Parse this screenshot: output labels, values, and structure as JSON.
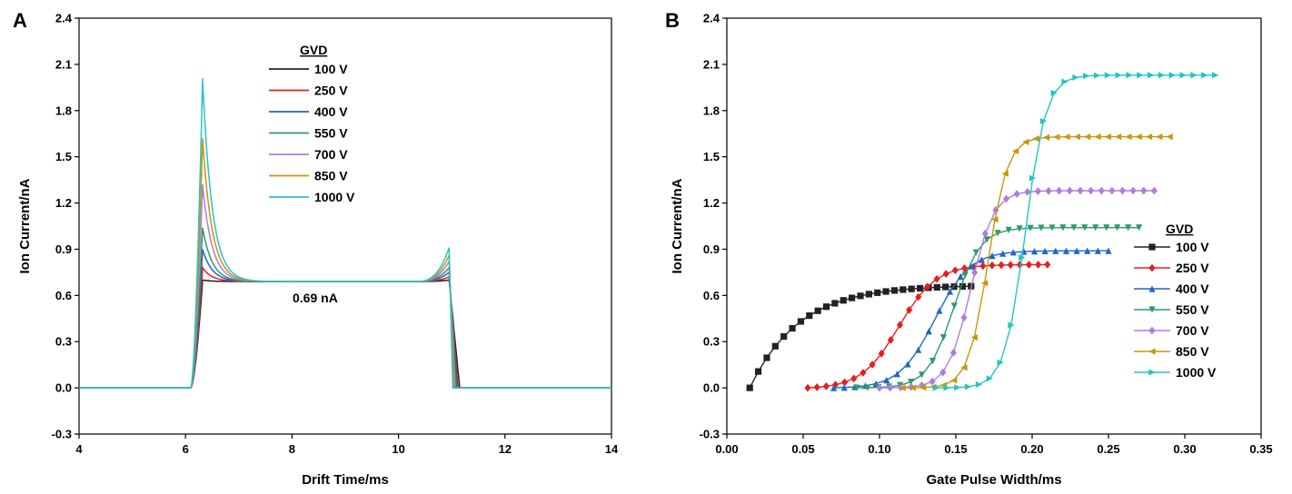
{
  "legend_title": "GVD",
  "series_names": [
    "100 V",
    "250 V",
    "400 V",
    "550 V",
    "700 V",
    "850 V",
    "1000 V"
  ],
  "colors": {
    "100 V": "#222222",
    "250 V": "#e3201f",
    "400 V": "#1f66c6",
    "550 V": "#2e9b66",
    "700 V": "#b07cdc",
    "850 V": "#c8960a",
    "1000 V": "#25c4c4"
  },
  "chart_data": [
    {
      "panel": "A",
      "type": "line",
      "xlabel": "Drift Time/ms",
      "ylabel": "Ion Current/nA",
      "xlim": [
        4,
        14
      ],
      "ylim": [
        -0.3,
        2.4
      ],
      "xticks": [
        4,
        6,
        8,
        10,
        12,
        14
      ],
      "yticks": [
        -0.3,
        0.0,
        0.3,
        0.6,
        0.9,
        1.2,
        1.5,
        1.8,
        2.1,
        2.4
      ],
      "legend_title": "GVD",
      "legend_position": "top-center",
      "annotation": "0.69 nA",
      "annotation_at": [
        8.8,
        0.6
      ],
      "pulse": {
        "baseline": 0.0,
        "rise_start": 6.1,
        "peak_time": 6.32,
        "plateau": 0.69,
        "tail_peak_time": 10.95,
        "fall_end": 11.05
      },
      "series": [
        {
          "name": "100 V",
          "front_peak": 0.7,
          "tail_peak": 0.7,
          "fall_end": 11.15
        },
        {
          "name": "250 V",
          "front_peak": 0.78,
          "tail_peak": 0.72,
          "fall_end": 11.12
        },
        {
          "name": "400 V",
          "front_peak": 0.9,
          "tail_peak": 0.75,
          "fall_end": 11.1
        },
        {
          "name": "550 V",
          "front_peak": 1.04,
          "tail_peak": 0.78,
          "fall_end": 11.08
        },
        {
          "name": "700 V",
          "front_peak": 1.32,
          "tail_peak": 0.82,
          "fall_end": 11.06
        },
        {
          "name": "850 V",
          "front_peak": 1.62,
          "tail_peak": 0.86,
          "fall_end": 11.04
        },
        {
          "name": "1000 V",
          "front_peak": 2.01,
          "tail_peak": 0.91,
          "fall_end": 11.02
        }
      ]
    },
    {
      "panel": "B",
      "type": "line",
      "xlabel": "Gate Pulse Width/ms",
      "ylabel": "Ion Current/nA",
      "xlim": [
        0.0,
        0.35
      ],
      "ylim": [
        -0.3,
        2.4
      ],
      "xticks": [
        0.0,
        0.05,
        0.1,
        0.15,
        0.2,
        0.25,
        0.3,
        0.35
      ],
      "yticks": [
        -0.3,
        0.0,
        0.3,
        0.6,
        0.9,
        1.2,
        1.5,
        1.8,
        2.1,
        2.4
      ],
      "legend_title": "GVD",
      "legend_position": "center-right",
      "series": [
        {
          "name": "100 V",
          "marker": "square",
          "x_start": 0.015,
          "x_end": 0.16,
          "y_end": 0.66,
          "k": 22
        },
        {
          "name": "250 V",
          "marker": "diamond",
          "x_start": 0.053,
          "x_end": 0.21,
          "y_end": 0.8,
          "k": 20
        },
        {
          "name": "400 V",
          "marker": "triangle-up",
          "x_start": 0.07,
          "x_end": 0.25,
          "y_end": 0.89,
          "k": 22
        },
        {
          "name": "550 V",
          "marker": "triangle-down",
          "x_start": 0.085,
          "x_end": 0.27,
          "y_end": 1.04,
          "k": 26
        },
        {
          "name": "700 V",
          "marker": "diamond",
          "x_start": 0.1,
          "x_end": 0.28,
          "y_end": 1.28,
          "k": 28
        },
        {
          "name": "850 V",
          "marker": "triangle-left",
          "x_start": 0.115,
          "x_end": 0.29,
          "y_end": 1.63,
          "k": 30
        },
        {
          "name": "1000 V",
          "marker": "triangle-right",
          "x_start": 0.137,
          "x_end": 0.32,
          "y_end": 2.03,
          "k": 30
        }
      ]
    }
  ]
}
